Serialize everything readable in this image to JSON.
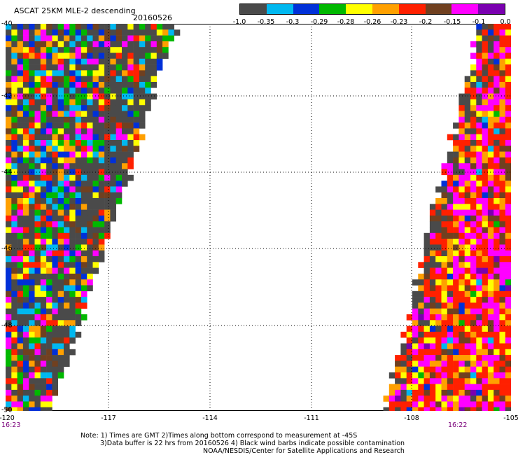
{
  "title": "ASCAT 25KM MLE-2 descending",
  "date": "20160526",
  "colorbar": {
    "colors": [
      "#4a4a4a",
      "#00b8f0",
      "#0030d8",
      "#00b800",
      "#ffff00",
      "#ffa000",
      "#ff2000",
      "#704020",
      "#ff00ff",
      "#7a00b0"
    ],
    "tick_labels": [
      "-1.0",
      "-0.35",
      "-0.3",
      "-0.29",
      "-0.28",
      "-0.26",
      "-0.23",
      "-0.2",
      "-0.15",
      "-0.1",
      "0.0"
    ]
  },
  "axes": {
    "lat_labels": [
      "-40",
      "-42",
      "-44",
      "-46",
      "-48",
      "-50"
    ],
    "lon_labels": [
      "-120",
      "-117",
      "-114",
      "-111",
      "-108",
      "-105"
    ]
  },
  "times": {
    "left": "16:23",
    "right": "16:22"
  },
  "notes": {
    "line1": "Note: 1) Times are GMT 2)Times along bottom correspond to measurement at -45S",
    "line2": "3)Data buffer is 22 hrs from 20160526 4) Black wind barbs indicate possible contamination",
    "line3": "NOAA/NESDIS/Center for Satellite Applications and Research"
  }
}
